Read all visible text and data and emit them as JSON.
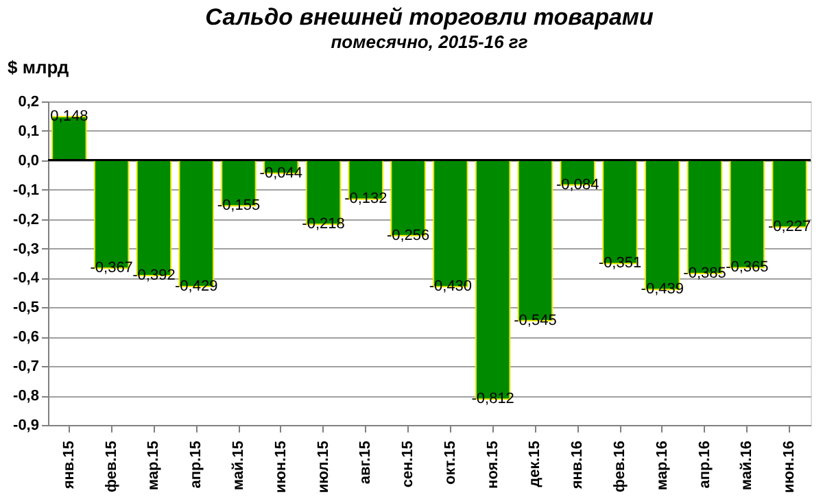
{
  "chart_data": {
    "type": "bar",
    "title": "Сальдо внешней торговли товарами",
    "subtitle": "помесячно, 2015-16 гг",
    "ylabel": "$ млрд",
    "categories": [
      "янв.15",
      "фев.15",
      "мар.15",
      "апр.15",
      "май.15",
      "июн.15",
      "июл.15",
      "авг.15",
      "сен.15",
      "окт.15",
      "ноя.15",
      "дек.15",
      "янв.16",
      "фев.16",
      "мар.16",
      "апр.16",
      "май.16",
      "июн.16"
    ],
    "values": [
      0.148,
      -0.367,
      -0.392,
      -0.429,
      -0.155,
      -0.044,
      -0.218,
      -0.132,
      -0.256,
      -0.43,
      -0.812,
      -0.545,
      -0.084,
      -0.351,
      -0.439,
      -0.385,
      -0.365,
      -0.227
    ],
    "value_labels": [
      "0,148",
      "-0,367",
      "-0,392",
      "-0,429",
      "-0,155",
      "-0,044",
      "-0,218",
      "-0,132",
      "-0,256",
      "-0,430",
      "-0,812",
      "-0,545",
      "-0,084",
      "-0,351",
      "-0,439",
      "-0,385",
      "-0,365",
      "-0,227"
    ],
    "color": "#008a00",
    "ylim": [
      -0.9,
      0.2
    ],
    "yticks": [
      {
        "value": 0.2,
        "label": "0,2"
      },
      {
        "value": 0.1,
        "label": "0,1"
      },
      {
        "value": 0.0,
        "label": "0,0"
      },
      {
        "value": -0.1,
        "label": "-0,1"
      },
      {
        "value": -0.2,
        "label": "-0,2"
      },
      {
        "value": -0.3,
        "label": "-0,3"
      },
      {
        "value": -0.4,
        "label": "-0,4"
      },
      {
        "value": -0.5,
        "label": "-0,5"
      },
      {
        "value": -0.6,
        "label": "-0,6"
      },
      {
        "value": -0.7,
        "label": "-0,7"
      },
      {
        "value": -0.8,
        "label": "-0,8"
      },
      {
        "value": -0.9,
        "label": "-0,9"
      }
    ],
    "grid": "y"
  }
}
